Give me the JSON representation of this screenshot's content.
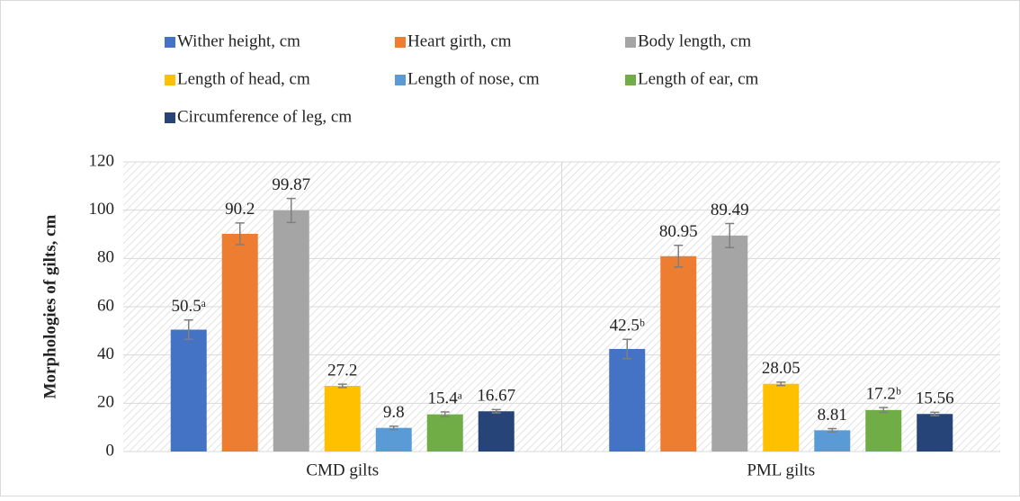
{
  "chart_data": {
    "type": "bar",
    "y_axis_label": "Morphologies of gilts, cm",
    "categories": [
      "CMD gilts",
      "PML gilts"
    ],
    "series": [
      {
        "name": "Wither height, cm",
        "color": "#4472c4",
        "values": [
          50.5,
          42.5
        ],
        "value_labels": [
          "50.5ᵃ",
          "42.5ᵇ"
        ],
        "errors": [
          4,
          4
        ]
      },
      {
        "name": "Heart girth, cm",
        "color": "#ed7d31",
        "values": [
          90.2,
          80.95
        ],
        "errors": [
          4.5,
          4.5
        ]
      },
      {
        "name": "Body length, cm",
        "color": "#a5a5a5",
        "values": [
          99.87,
          89.49
        ],
        "errors": [
          5,
          5
        ]
      },
      {
        "name": "Length of head, cm",
        "color": "#ffc000",
        "values": [
          27.2,
          28.05
        ],
        "errors": [
          0.7,
          0.7
        ]
      },
      {
        "name": "Length of nose, cm",
        "color": "#5b9bd5",
        "values": [
          9.8,
          8.81
        ],
        "errors": [
          0.7,
          0.7
        ]
      },
      {
        "name": "Length of ear, cm",
        "color": "#70ad47",
        "values": [
          15.4,
          17.2
        ],
        "value_labels": [
          "15.4ᵃ",
          "17.2ᵇ"
        ],
        "errors": [
          1,
          1
        ]
      },
      {
        "name": "Circumference of leg, cm",
        "color": "#264478",
        "values": [
          16.67,
          15.56
        ],
        "errors": [
          0.7,
          0.7
        ]
      }
    ],
    "ylim": [
      0,
      120
    ],
    "yticks": [
      0,
      20,
      40,
      60,
      80,
      100,
      120
    ],
    "grid": true,
    "legend": "top"
  }
}
